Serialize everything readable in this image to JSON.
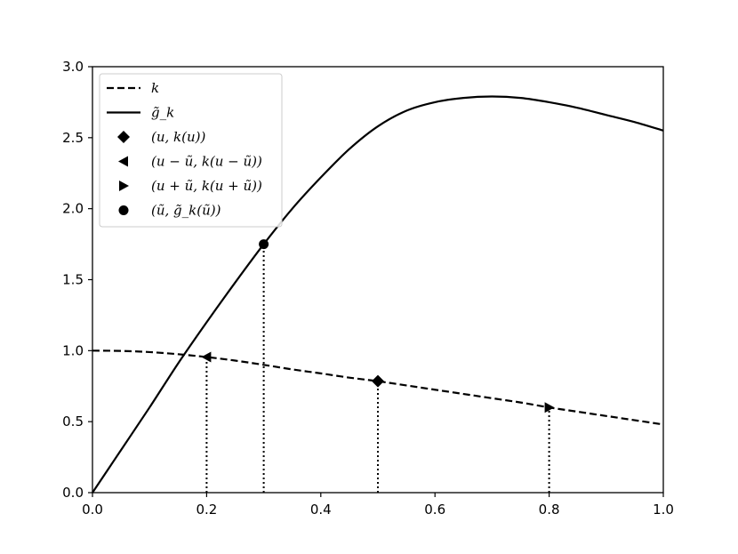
{
  "chart_data": {
    "type": "line",
    "title": "",
    "xlabel": "",
    "ylabel": "",
    "xlim": [
      0.0,
      1.0
    ],
    "ylim": [
      0.0,
      3.0
    ],
    "x_ticks": [
      "0.0",
      "0.2",
      "0.4",
      "0.6",
      "0.8",
      "1.0"
    ],
    "y_ticks": [
      "0.0",
      "0.5",
      "1.0",
      "1.5",
      "2.0",
      "2.5",
      "3.0"
    ],
    "grid": false,
    "legend_placement": "upper-left",
    "series": [
      {
        "name": "k",
        "style": "dashed",
        "color": "#000000",
        "x": [
          0.0,
          0.05,
          0.1,
          0.15,
          0.2,
          0.25,
          0.3,
          0.35,
          0.4,
          0.45,
          0.5,
          0.55,
          0.6,
          0.65,
          0.7,
          0.75,
          0.8,
          0.85,
          0.9,
          0.95,
          1.0
        ],
        "y": [
          1.0,
          0.998,
          0.99,
          0.975,
          0.955,
          0.93,
          0.9,
          0.868,
          0.84,
          0.81,
          0.785,
          0.755,
          0.725,
          0.695,
          0.665,
          0.635,
          0.6,
          0.57,
          0.54,
          0.51,
          0.48
        ]
      },
      {
        "name": "g̃_k",
        "style": "solid",
        "color": "#000000",
        "x": [
          0.0,
          0.05,
          0.1,
          0.15,
          0.2,
          0.25,
          0.3,
          0.35,
          0.4,
          0.45,
          0.5,
          0.55,
          0.6,
          0.65,
          0.7,
          0.75,
          0.8,
          0.85,
          0.9,
          0.95,
          1.0
        ],
        "y": [
          0.0,
          0.3,
          0.6,
          0.91,
          1.2,
          1.48,
          1.75,
          2.0,
          2.22,
          2.42,
          2.58,
          2.69,
          2.75,
          2.78,
          2.79,
          2.78,
          2.75,
          2.71,
          2.66,
          2.61,
          2.55
        ]
      }
    ],
    "markers": [
      {
        "name": "(u, k(u))",
        "shape": "diamond",
        "x": 0.5,
        "y": 0.785
      },
      {
        "name": "(u − ũ, k(u − ũ))",
        "shape": "triangle-left",
        "x": 0.2,
        "y": 0.955
      },
      {
        "name": "(u + ũ, k(u + ũ))",
        "shape": "triangle-right",
        "x": 0.8,
        "y": 0.6
      },
      {
        "name": "(ũ, g̃_k(ũ))",
        "shape": "circle",
        "x": 0.3,
        "y": 1.75
      }
    ],
    "vertical_guides": [
      {
        "x": 0.2,
        "y_top": 0.955
      },
      {
        "x": 0.3,
        "y_top": 1.75
      },
      {
        "x": 0.5,
        "y_top": 0.785
      },
      {
        "x": 0.8,
        "y_top": 0.6
      }
    ],
    "legend": [
      {
        "label": "k",
        "kind": "line",
        "style": "dashed"
      },
      {
        "label": "g̃_k",
        "kind": "line",
        "style": "solid"
      },
      {
        "label": "(u, k(u))",
        "kind": "marker",
        "shape": "diamond"
      },
      {
        "label": "(u − ũ, k(u − ũ))",
        "kind": "marker",
        "shape": "triangle-left"
      },
      {
        "label": "(u + ũ, k(u + ũ))",
        "kind": "marker",
        "shape": "triangle-right"
      },
      {
        "label": "(ũ, g̃_k(ũ))",
        "kind": "marker",
        "shape": "circle"
      }
    ]
  }
}
